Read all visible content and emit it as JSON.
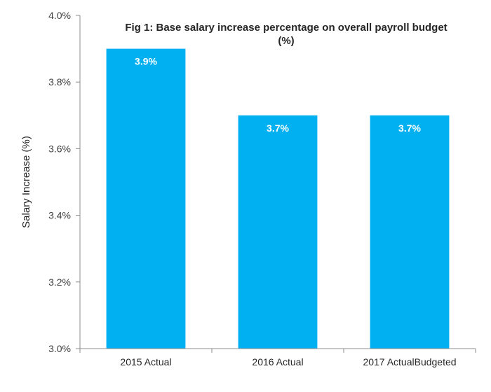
{
  "chart_data": {
    "type": "bar",
    "title_lines": [
      "Fig 1: Base salary increase percentage on overall payroll budget",
      "(%)"
    ],
    "xlabel": "",
    "ylabel": "Salary Increase (%)",
    "categories": [
      "2015 Actual",
      "2016 Actual",
      "2017 ActualBudgeted"
    ],
    "values": [
      3.9,
      3.7,
      3.7
    ],
    "data_labels": [
      "3.9%",
      "3.7%",
      "3.7%"
    ],
    "ylim": [
      3.0,
      4.0
    ],
    "yticks": [
      3.0,
      3.2,
      3.4,
      3.6,
      3.8,
      4.0
    ],
    "ytick_labels": [
      "3.0%",
      "3.2%",
      "3.4%",
      "3.6%",
      "3.8%",
      "4.0%"
    ],
    "grid": false,
    "legend": "none",
    "bar_color": "#00B0F0",
    "axis_color": "#8C8C8C"
  }
}
